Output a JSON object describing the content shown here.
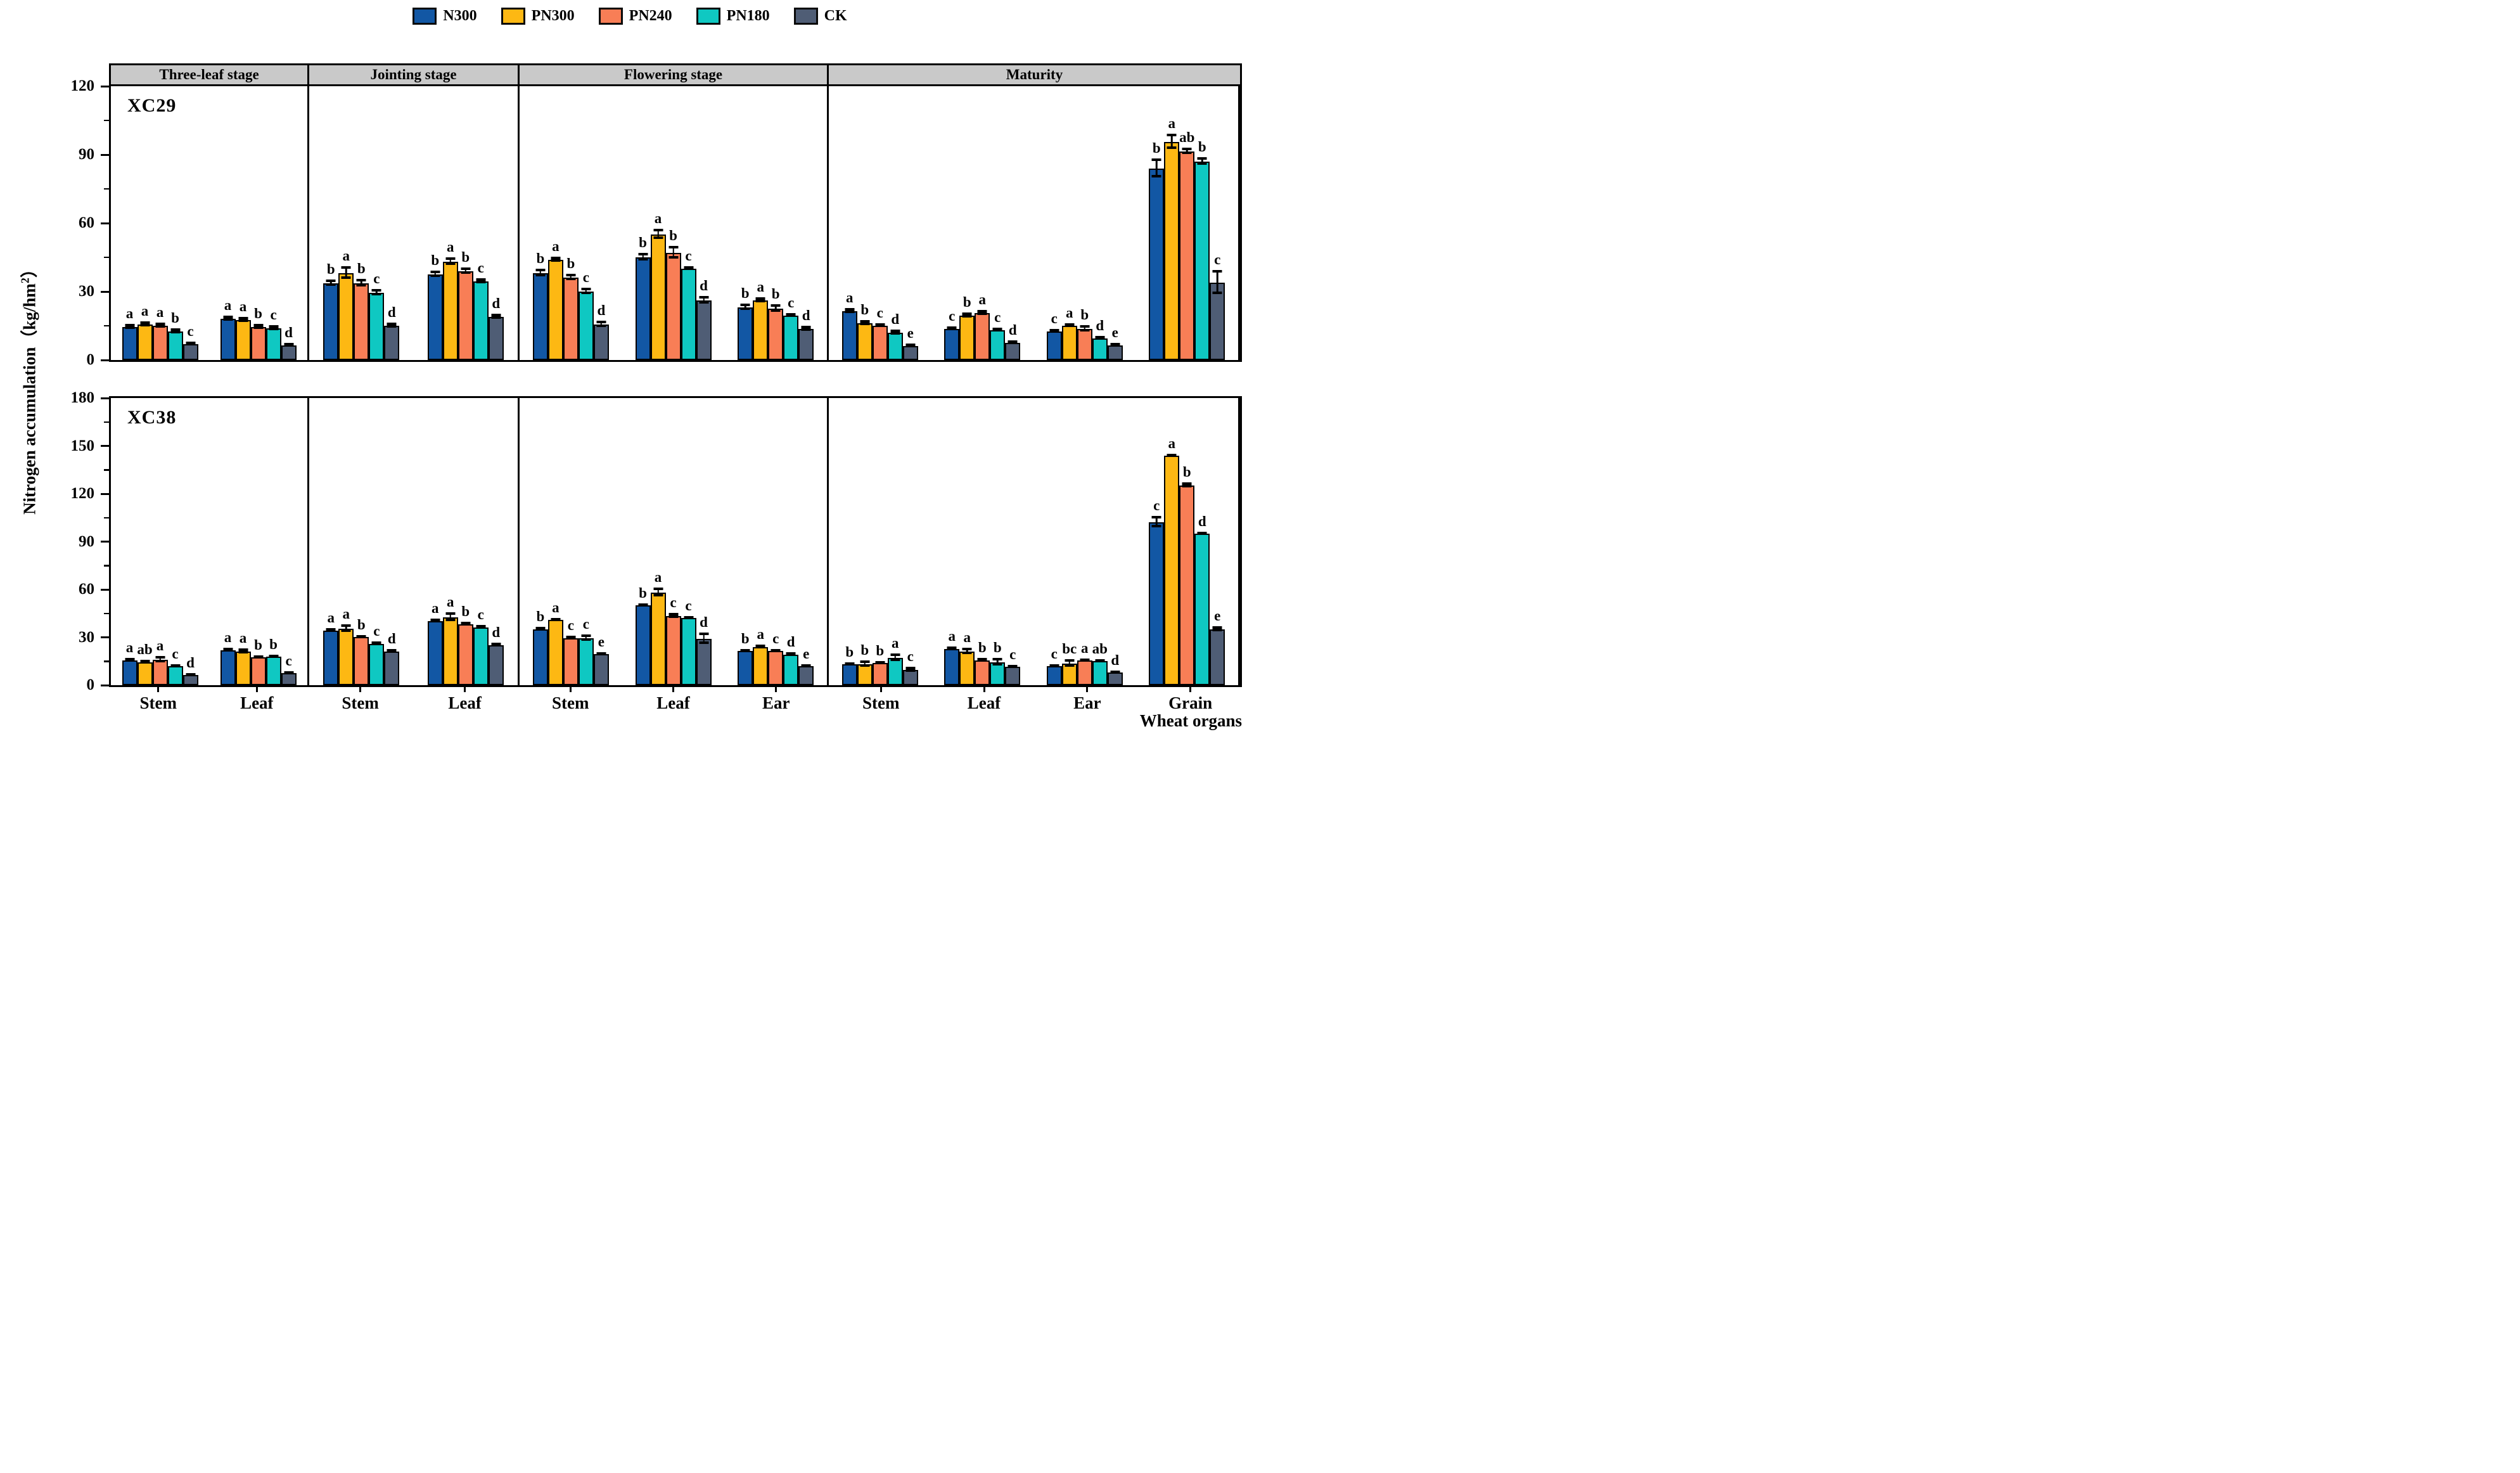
{
  "legend": {
    "items": [
      {
        "label": "N300",
        "color": "#1257a4"
      },
      {
        "label": "PN300",
        "color": "#fdb813"
      },
      {
        "label": "PN240",
        "color": "#f87e56"
      },
      {
        "label": "PN180",
        "color": "#0fc8c2"
      },
      {
        "label": "CK",
        "color": "#4f5d75"
      }
    ]
  },
  "header": {
    "stages": [
      "Three-leaf stage",
      "Jointing  stage",
      "Flowering stage",
      "Maturity"
    ],
    "band_color": "#c9c9c9"
  },
  "y_axis": {
    "title_prefix": "Nitrogen accumulation（kg/hm",
    "title_sup": "2",
    "title_suffix": "）"
  },
  "x_axis": {
    "title": "Wheat organs"
  },
  "chart_data": {
    "type": "bar",
    "legend_position": "top",
    "series_names": [
      "N300",
      "PN300",
      "PN240",
      "PN180",
      "CK"
    ],
    "panels": [
      {
        "cultivar": "XC29",
        "ylim": [
          0,
          120
        ],
        "yticks": [
          0,
          30,
          60,
          90,
          120
        ],
        "yticks_minor": [
          15,
          45,
          75,
          105
        ],
        "stages": [
          {
            "stage": "Three-leaf stage",
            "groups": [
              {
                "organ": "Stem",
                "values": [
                  14.5,
                  15.5,
                  15,
                  12.5,
                  7
                ],
                "errors": [
                  0.8,
                  0.8,
                  0.8,
                  0.8,
                  0.5
                ],
                "letters": [
                  "a",
                  "a",
                  "a",
                  "b",
                  "c"
                ]
              },
              {
                "organ": "Leaf",
                "values": [
                  18,
                  17.5,
                  14.5,
                  14,
                  6.5
                ],
                "errors": [
                  0.8,
                  0.8,
                  0.8,
                  0.8,
                  0.5
                ],
                "letters": [
                  "a",
                  "a",
                  "b",
                  "c",
                  "d"
                ]
              }
            ]
          },
          {
            "stage": "Jointing  stage",
            "groups": [
              {
                "organ": "Stem",
                "values": [
                  33.5,
                  38,
                  33.5,
                  29.5,
                  15
                ],
                "errors": [
                  1,
                  2.5,
                  1.5,
                  1,
                  0.8
                ],
                "letters": [
                  "b",
                  "a",
                  "b",
                  "c",
                  "d"
                ]
              },
              {
                "organ": "Leaf",
                "values": [
                  37.5,
                  43,
                  39,
                  34.5,
                  19
                ],
                "errors": [
                  1,
                  1.5,
                  1,
                  0.8,
                  0.8
                ],
                "letters": [
                  "b",
                  "a",
                  "b",
                  "c",
                  "d"
                ]
              }
            ]
          },
          {
            "stage": "Flowering stage",
            "groups": [
              {
                "organ": "Stem",
                "values": [
                  38,
                  44,
                  36,
                  30,
                  15.5
                ],
                "errors": [
                  1.5,
                  0.8,
                  1.2,
                  1.2,
                  1
                ],
                "letters": [
                  "b",
                  "a",
                  "b",
                  "c",
                  "d"
                ]
              },
              {
                "organ": "Leaf",
                "values": [
                  45,
                  55,
                  47,
                  40,
                  26
                ],
                "errors": [
                  1.5,
                  2,
                  2.5,
                  0.5,
                  1.5
                ],
                "letters": [
                  "b",
                  "a",
                  "b",
                  "c",
                  "d"
                ]
              },
              {
                "organ": "Ear",
                "values": [
                  23,
                  26,
                  22.5,
                  19.5,
                  13.5
                ],
                "errors": [
                  1,
                  0.8,
                  1.5,
                  0.5,
                  0.8
                ],
                "letters": [
                  "b",
                  "a",
                  "b",
                  "c",
                  "d"
                ]
              }
            ]
          },
          {
            "stage": "Maturity",
            "groups": [
              {
                "organ": "Stem",
                "values": [
                  21.5,
                  16,
                  15,
                  12,
                  6
                ],
                "errors": [
                  0.8,
                  0.8,
                  0.5,
                  0.8,
                  0.5
                ],
                "letters": [
                  "a",
                  "b",
                  "c",
                  "d",
                  "e"
                ]
              },
              {
                "organ": "Leaf",
                "values": [
                  13.5,
                  19.5,
                  20.5,
                  13,
                  7.5
                ],
                "errors": [
                  0.5,
                  0.8,
                  0.8,
                  0.5,
                  0.5
                ],
                "letters": [
                  "c",
                  "b",
                  "a",
                  "c",
                  "d"
                ]
              },
              {
                "organ": "Ear",
                "values": [
                  12.5,
                  15,
                  13.5,
                  9.5,
                  6.5
                ],
                "errors": [
                  0.5,
                  0.5,
                  1.2,
                  0.5,
                  0.5
                ],
                "letters": [
                  "c",
                  "a",
                  "b",
                  "d",
                  "e"
                ]
              },
              {
                "organ": "Grain",
                "values": [
                  84,
                  95.5,
                  91.5,
                  87,
                  34
                ],
                "errors": [
                  4,
                  3,
                  1,
                  1.5,
                  5
                ],
                "letters": [
                  "b",
                  "a",
                  "ab",
                  "b",
                  "c"
                ]
              }
            ]
          }
        ]
      },
      {
        "cultivar": "XC38",
        "ylim": [
          0,
          180
        ],
        "yticks": [
          0,
          30,
          60,
          90,
          120,
          150,
          180
        ],
        "yticks_minor": [
          15,
          45,
          75,
          105,
          135,
          165
        ],
        "stages": [
          {
            "stage": "Three-leaf stage",
            "groups": [
              {
                "organ": "Stem",
                "values": [
                  15.5,
                  14.5,
                  16,
                  12,
                  6.5
                ],
                "errors": [
                  0.8,
                  0.8,
                  1.5,
                  0.5,
                  0.5
                ],
                "letters": [
                  "a",
                  "ab",
                  "a",
                  "c",
                  "d"
                ]
              },
              {
                "organ": "Leaf",
                "values": [
                  22,
                  21,
                  17.5,
                  18,
                  7.5
                ],
                "errors": [
                  0.8,
                  1.2,
                  0.5,
                  0.5,
                  0.5
                ],
                "letters": [
                  "a",
                  "a",
                  "b",
                  "b",
                  "c"
                ]
              }
            ]
          },
          {
            "stage": "Jointing  stage",
            "groups": [
              {
                "organ": "Stem",
                "values": [
                  34,
                  35.5,
                  30,
                  26,
                  21
                ],
                "errors": [
                  0.8,
                  2,
                  0.5,
                  0.8,
                  0.8
                ],
                "letters": [
                  "a",
                  "a",
                  "b",
                  "c",
                  "d"
                ]
              },
              {
                "organ": "Leaf",
                "values": [
                  40,
                  42.5,
                  38,
                  36,
                  25
                ],
                "errors": [
                  0.8,
                  2.5,
                  0.8,
                  0.8,
                  0.8
                ],
                "letters": [
                  "a",
                  "a",
                  "b",
                  "c",
                  "d"
                ]
              }
            ]
          },
          {
            "stage": "Flowering stage",
            "groups": [
              {
                "organ": "Stem",
                "values": [
                  35,
                  41,
                  29.5,
                  29.5,
                  19.5
                ],
                "errors": [
                  0.8,
                  0.5,
                  0.8,
                  1.5,
                  0.5
                ],
                "letters": [
                  "b",
                  "a",
                  "c",
                  "c",
                  "e"
                ]
              },
              {
                "organ": "Leaf",
                "values": [
                  50,
                  58,
                  43.5,
                  42,
                  29
                ],
                "errors": [
                  0.5,
                  2.5,
                  1,
                  0.5,
                  3
                ],
                "letters": [
                  "b",
                  "a",
                  "c",
                  "c",
                  "d"
                ]
              },
              {
                "organ": "Ear",
                "values": [
                  21.5,
                  24,
                  21.5,
                  19,
                  12
                ],
                "errors": [
                  0.5,
                  0.8,
                  0.5,
                  0.8,
                  0.5
                ],
                "letters": [
                  "b",
                  "a",
                  "c",
                  "d",
                  "e"
                ]
              }
            ]
          },
          {
            "stage": "Maturity",
            "groups": [
              {
                "organ": "Stem",
                "values": [
                  13,
                  13,
                  14,
                  17,
                  9.5
                ],
                "errors": [
                  0.5,
                  1.5,
                  0.5,
                  2,
                  1
                ],
                "letters": [
                  "b",
                  "b",
                  "b",
                  "a",
                  "c"
                ]
              },
              {
                "organ": "Leaf",
                "values": [
                  22.5,
                  21,
                  15.5,
                  14.5,
                  11.5
                ],
                "errors": [
                  0.8,
                  1.5,
                  0.8,
                  1.8,
                  0.5
                ],
                "letters": [
                  "a",
                  "a",
                  "b",
                  "b",
                  "c"
                ]
              },
              {
                "organ": "Ear",
                "values": [
                  12,
                  13.5,
                  15.5,
                  15,
                  8
                ],
                "errors": [
                  0.5,
                  2,
                  0.5,
                  0.5,
                  0.5
                ],
                "letters": [
                  "c",
                  "bc",
                  "a",
                  "ab",
                  "d"
                ]
              },
              {
                "organ": "Grain",
                "values": [
                  102,
                  144,
                  125,
                  95,
                  35
                ],
                "errors": [
                  3,
                  0.5,
                  1,
                  0.5,
                  1
                ],
                "letters": [
                  "c",
                  "a",
                  "b",
                  "d",
                  "e"
                ]
              }
            ]
          }
        ]
      }
    ]
  }
}
